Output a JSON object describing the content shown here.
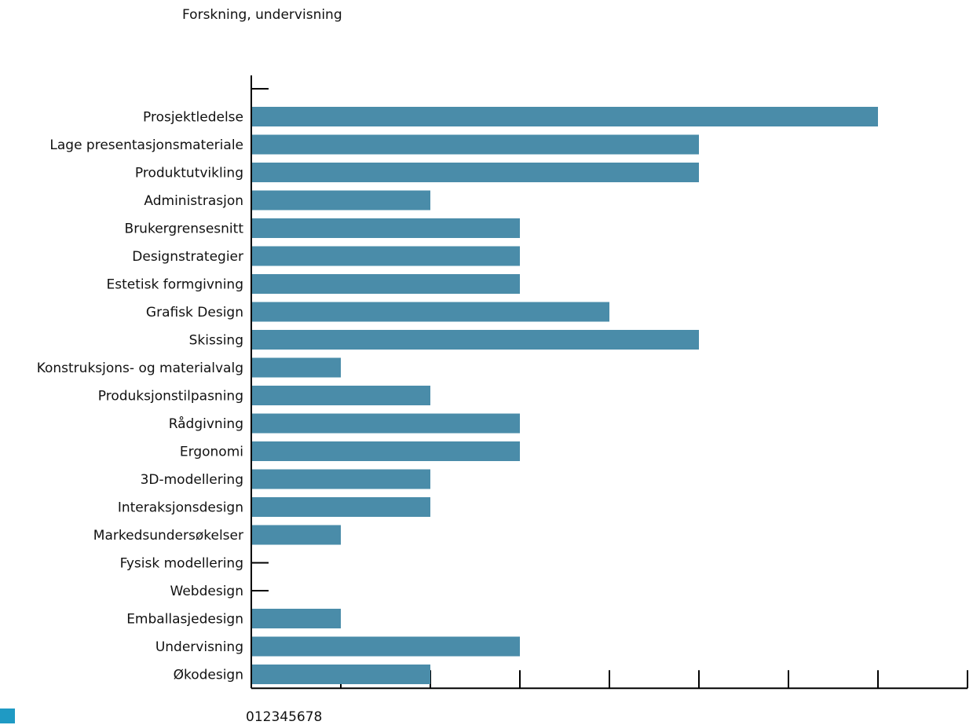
{
  "title": "Forskning, undervisning",
  "tick_text": "012345678",
  "colors": {
    "bar": "#4a8ca9",
    "legend": "#1f9ac4",
    "axis": "#000000"
  },
  "chart_data": {
    "type": "bar",
    "orientation": "horizontal",
    "title": "Forskning, undervisning",
    "categories": [
      "Prosjektledelse",
      "Lage presentasjonsmateriale",
      "Produktutvikling",
      "Administrasjon",
      "Brukergrensesnitt",
      "Designstrategier",
      "Estetisk formgivning",
      "Grafisk Design",
      "Skissing",
      "Konstruksjons- og materialvalg",
      "Produksjonstilpasning",
      "Rådgivning",
      "Ergonomi",
      "3D-modellering",
      "Interaksjonsdesign",
      "Markedsundersøkelser",
      "Fysisk modellering",
      "Webdesign",
      "Emballasjedesign",
      "Undervisning",
      "Økodesign"
    ],
    "values": [
      7,
      5,
      5,
      2,
      3,
      3,
      3,
      4,
      5,
      1,
      2,
      3,
      3,
      2,
      2,
      1,
      0,
      0,
      1,
      3,
      2
    ],
    "xlim": [
      0,
      8
    ],
    "xticks": [
      0,
      1,
      2,
      3,
      4,
      5,
      6,
      7,
      8
    ],
    "grid": false,
    "legend": "bottom-left"
  }
}
